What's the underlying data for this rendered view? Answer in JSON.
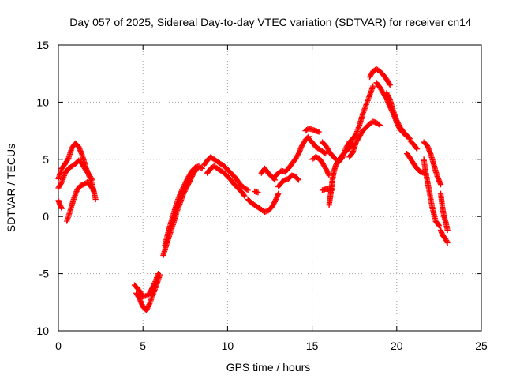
{
  "chart_data": {
    "type": "scatter",
    "title": "Day 057 of 2025, Sidereal Day-to-day VTEC variation (SDTVAR) for receiver cn14",
    "xlabel": "GPS time / hours",
    "ylabel": "SDTVAR / TECUs",
    "xlim": [
      0,
      25
    ],
    "ylim": [
      -10,
      15
    ],
    "xticks": [
      0,
      5,
      10,
      15,
      20,
      25
    ],
    "yticks": [
      -10,
      -5,
      0,
      5,
      10,
      15
    ],
    "xtick_labels": [
      "0",
      "5",
      "10",
      "15",
      "20",
      "25"
    ],
    "ytick_labels": [
      "-10",
      "-5",
      "0",
      "5",
      "10",
      "15"
    ],
    "grid": true,
    "marker": "plus",
    "series_color": "#ff0000",
    "series": [
      {
        "name": "s1",
        "x": [
          0.0,
          0.2,
          0.4,
          0.6,
          0.8,
          1.0,
          1.2,
          1.4,
          1.6,
          1.8,
          2.0,
          2.2
        ],
        "y": [
          3.3,
          4.2,
          4.6,
          5.1,
          6.0,
          6.4,
          6.1,
          5.4,
          4.4,
          3.6,
          2.8,
          1.5
        ]
      },
      {
        "name": "s2",
        "x": [
          0.0,
          0.2,
          0.4,
          0.6,
          0.8,
          1.0,
          1.2,
          1.4,
          1.6,
          1.8,
          2.0
        ],
        "y": [
          2.5,
          3.0,
          3.8,
          4.2,
          4.4,
          4.6,
          4.9,
          4.6,
          4.1,
          3.7,
          3.2
        ]
      },
      {
        "name": "s3",
        "x": [
          0.0,
          0.1,
          0.2
        ],
        "y": [
          1.4,
          1.0,
          0.7
        ]
      },
      {
        "name": "s4",
        "x": [
          0.5,
          0.7,
          0.9,
          1.1,
          1.3,
          1.5,
          1.7,
          1.9,
          2.1
        ],
        "y": [
          -0.4,
          0.5,
          1.5,
          2.3,
          2.7,
          2.8,
          3.0,
          2.7,
          2.2
        ]
      },
      {
        "name": "s5",
        "x": [
          4.5,
          4.8,
          5.0,
          5.3,
          5.5,
          5.7,
          5.9
        ],
        "y": [
          -6.0,
          -6.5,
          -7.0,
          -6.9,
          -6.4,
          -5.8,
          -5.0
        ]
      },
      {
        "name": "s6",
        "x": [
          4.6,
          4.8,
          5.0,
          5.2,
          5.4,
          5.6,
          5.8,
          6.0
        ],
        "y": [
          -6.7,
          -7.2,
          -7.9,
          -8.2,
          -7.6,
          -6.8,
          -6.0,
          -5.1
        ]
      },
      {
        "name": "s7",
        "x": [
          6.2,
          6.4,
          6.6,
          6.8,
          7.0,
          7.2,
          7.4,
          7.6,
          7.8,
          8.0,
          8.2
        ],
        "y": [
          -3.4,
          -2.4,
          -1.5,
          -0.6,
          0.4,
          1.2,
          2.0,
          2.6,
          3.2,
          3.8,
          4.2
        ]
      },
      {
        "name": "s8",
        "x": [
          6.3,
          6.5,
          6.7,
          6.9,
          7.1,
          7.3,
          7.5,
          7.7,
          7.9,
          8.1,
          8.3,
          8.5
        ],
        "y": [
          -2.5,
          -1.3,
          -0.3,
          0.7,
          1.6,
          2.3,
          2.9,
          3.5,
          4.0,
          4.3,
          4.4,
          4.2
        ]
      },
      {
        "name": "s9",
        "x": [
          8.6,
          8.8,
          9.0,
          9.2,
          9.4,
          9.6,
          9.8,
          10.0,
          10.2,
          10.4,
          10.6,
          10.8,
          11.0,
          11.2
        ],
        "y": [
          4.5,
          4.9,
          5.2,
          5.0,
          4.8,
          4.6,
          4.4,
          4.1,
          3.8,
          3.5,
          3.1,
          2.7,
          2.5,
          2.3
        ]
      },
      {
        "name": "s10",
        "x": [
          8.8,
          9.0,
          9.2,
          9.4,
          9.6,
          9.8,
          10.0,
          10.2,
          10.4,
          10.6,
          10.8,
          11.0
        ],
        "y": [
          3.8,
          4.2,
          4.4,
          4.2,
          4.0,
          3.8,
          3.5,
          3.2,
          2.8,
          2.5,
          2.2,
          1.8
        ]
      },
      {
        "name": "s11",
        "x": [
          11.2,
          11.4,
          11.6,
          11.8,
          12.0,
          12.2,
          12.4,
          12.6,
          12.8,
          13.0
        ],
        "y": [
          1.5,
          1.2,
          1.0,
          0.8,
          0.6,
          0.4,
          0.5,
          0.8,
          1.3,
          2.0
        ]
      },
      {
        "name": "s12",
        "x": [
          11.6,
          11.8
        ],
        "y": [
          2.2,
          2.1
        ]
      },
      {
        "name": "s13",
        "x": [
          12.0,
          12.2,
          12.4,
          12.6,
          12.8
        ],
        "y": [
          3.8,
          4.2,
          3.8,
          3.5,
          3.2
        ]
      },
      {
        "name": "s14",
        "x": [
          12.8,
          13.0,
          13.2,
          13.4,
          13.6,
          13.8,
          14.0,
          14.2,
          14.4,
          14.6,
          14.8
        ],
        "y": [
          3.5,
          3.8,
          4.0,
          3.9,
          4.2,
          4.6,
          5.0,
          5.5,
          6.2,
          6.7,
          7.0
        ]
      },
      {
        "name": "s15",
        "x": [
          13.0,
          13.2,
          13.4,
          13.6,
          13.8,
          14.0,
          14.2
        ],
        "y": [
          2.6,
          3.0,
          3.2,
          3.3,
          3.6,
          3.5,
          3.2
        ]
      },
      {
        "name": "s16",
        "x": [
          14.6,
          14.8,
          15.0,
          15.2,
          15.4
        ],
        "y": [
          7.5,
          7.7,
          7.6,
          7.5,
          7.4
        ]
      },
      {
        "name": "s17",
        "x": [
          14.8,
          15.0,
          15.2,
          15.4,
          15.6,
          15.8
        ],
        "y": [
          6.8,
          6.5,
          6.1,
          5.9,
          5.7,
          5.5
        ]
      },
      {
        "name": "s18",
        "x": [
          15.6,
          15.8,
          16.0,
          16.2,
          16.4
        ],
        "y": [
          6.5,
          6.2,
          5.7,
          5.3,
          5.0
        ]
      },
      {
        "name": "s19",
        "x": [
          15.0,
          15.2,
          15.4,
          15.6,
          15.8,
          16.0
        ],
        "y": [
          5.0,
          5.2,
          5.1,
          4.7,
          4.2,
          3.6
        ]
      },
      {
        "name": "s20",
        "x": [
          15.6,
          15.8,
          16.0,
          16.2
        ],
        "y": [
          2.3,
          2.4,
          2.4,
          2.3
        ]
      },
      {
        "name": "s21",
        "x": [
          16.0,
          16.1,
          16.2,
          16.3,
          16.4,
          16.6,
          16.8,
          17.0,
          17.2,
          17.4
        ],
        "y": [
          1.0,
          2.0,
          3.2,
          4.0,
          4.5,
          5.0,
          5.4,
          5.7,
          6.0,
          6.4
        ]
      },
      {
        "name": "s22",
        "x": [
          16.6,
          16.8,
          17.0,
          17.2,
          17.4,
          17.6,
          17.8,
          18.0,
          18.2,
          18.4,
          18.6
        ],
        "y": [
          4.8,
          5.2,
          6.0,
          6.5,
          6.8,
          7.2,
          8.0,
          9.0,
          9.8,
          10.6,
          11.4
        ]
      },
      {
        "name": "s23",
        "x": [
          17.2,
          17.4,
          17.6,
          17.8,
          18.0,
          18.2,
          18.4,
          18.6,
          18.8,
          19.0
        ],
        "y": [
          5.2,
          5.6,
          6.5,
          7.0,
          7.5,
          7.8,
          8.1,
          8.3,
          8.2,
          8.0
        ]
      },
      {
        "name": "s24",
        "x": [
          18.4,
          18.6,
          18.8,
          19.0,
          19.2,
          19.4,
          19.6
        ],
        "y": [
          12.2,
          12.7,
          12.9,
          12.7,
          12.4,
          12.0,
          11.5
        ]
      },
      {
        "name": "s25",
        "x": [
          18.8,
          19.0,
          19.2,
          19.4,
          19.6,
          19.8,
          20.0,
          20.2,
          20.4,
          20.6,
          20.8
        ],
        "y": [
          11.7,
          11.3,
          10.8,
          10.3,
          9.6,
          9.0,
          8.2,
          7.6,
          7.3,
          7.0,
          6.8
        ]
      },
      {
        "name": "s26",
        "x": [
          19.4,
          19.6,
          19.8,
          20.0,
          20.2,
          20.4,
          20.6
        ],
        "y": [
          10.8,
          10.2,
          9.2,
          8.4,
          7.8,
          7.4,
          7.1
        ]
      },
      {
        "name": "s27",
        "x": [
          20.8,
          21.0,
          21.2
        ],
        "y": [
          6.6,
          6.3,
          5.9
        ]
      },
      {
        "name": "s28",
        "x": [
          20.6,
          20.8,
          21.0,
          21.2,
          21.4,
          21.6
        ],
        "y": [
          5.5,
          5.1,
          4.6,
          4.2,
          3.9,
          3.8
        ]
      },
      {
        "name": "s29",
        "x": [
          21.6,
          21.8,
          22.0,
          22.2,
          22.4,
          22.6
        ],
        "y": [
          6.5,
          6.2,
          5.5,
          4.5,
          3.5,
          2.8
        ]
      },
      {
        "name": "s30",
        "x": [
          21.6,
          21.7,
          21.8,
          21.9,
          22.0,
          22.1,
          22.2,
          22.3,
          22.4,
          22.5
        ],
        "y": [
          5.0,
          4.0,
          3.2,
          2.4,
          1.6,
          0.8,
          0.2,
          -0.4,
          -0.6,
          -0.8
        ]
      },
      {
        "name": "s31",
        "x": [
          22.6,
          22.7,
          22.8,
          22.9,
          23.0
        ],
        "y": [
          2.0,
          0.8,
          0.0,
          -0.5,
          -1.2
        ]
      },
      {
        "name": "s32",
        "x": [
          22.6,
          22.7,
          22.8,
          22.9,
          23.0
        ],
        "y": [
          -1.2,
          -1.6,
          -1.8,
          -2.0,
          -2.3
        ]
      }
    ]
  }
}
